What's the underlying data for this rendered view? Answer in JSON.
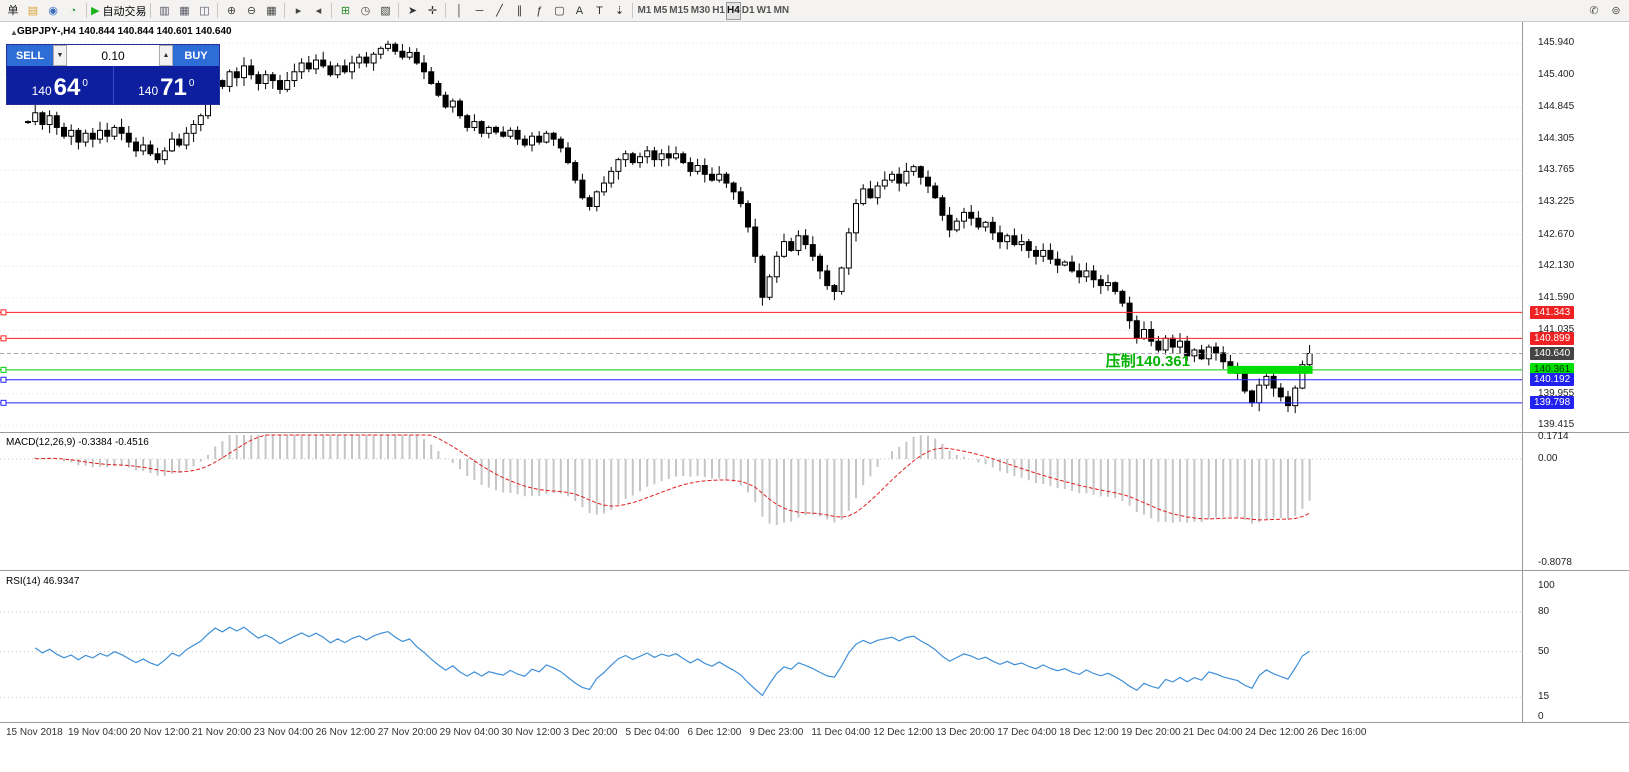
{
  "toolbar": {
    "left_groups": [
      [
        {
          "name": "new-order-button",
          "glyph": "单",
          "color": "#1a1a1a"
        },
        {
          "name": "charts-grid-icon",
          "glyph": "▤",
          "color": "#d8a030"
        },
        {
          "name": "profile-icon",
          "glyph": "◉",
          "color": "#3d6fc0"
        },
        {
          "name": "refresh-icon",
          "glyph": "◔",
          "color": "#2a9a4a"
        }
      ],
      [
        {
          "name": "auto-trading-button",
          "glyph": "▶",
          "color": "#1db51d",
          "label": "自动交易"
        }
      ],
      [
        {
          "name": "data-window-icon",
          "glyph": "▥",
          "color": "#556"
        },
        {
          "name": "market-watch-icon",
          "glyph": "▦",
          "color": "#556"
        },
        {
          "name": "navigator-icon",
          "glyph": "◫",
          "color": "#556"
        }
      ],
      [
        {
          "name": "zoom-in-icon",
          "glyph": "⊕",
          "color": "#444"
        },
        {
          "name": "zoom-out-icon",
          "glyph": "⊖",
          "color": "#444"
        },
        {
          "name": "tile-windows-icon",
          "glyph": "▦",
          "color": "#444"
        }
      ],
      [
        {
          "name": "auto-scroll-icon",
          "glyph": "▸",
          "color": "#444"
        },
        {
          "name": "chart-shift-icon",
          "glyph": "◂",
          "color": "#444"
        }
      ],
      [
        {
          "name": "indicators-icon",
          "glyph": "⊞",
          "color": "#2a8a2a"
        },
        {
          "name": "periods-icon",
          "glyph": "◷",
          "color": "#444"
        },
        {
          "name": "templates-icon",
          "glyph": "▧",
          "color": "#444"
        }
      ],
      [
        {
          "name": "cursor-icon",
          "glyph": "➤",
          "color": "#333"
        },
        {
          "name": "crosshair-icon",
          "glyph": "✛",
          "color": "#333"
        }
      ],
      [
        {
          "name": "vertical-line-icon",
          "glyph": "│",
          "color": "#333"
        },
        {
          "name": "horizontal-line-icon",
          "glyph": "─",
          "color": "#333"
        },
        {
          "name": "trendline-icon",
          "glyph": "╱",
          "color": "#333"
        },
        {
          "name": "channel-icon",
          "glyph": "∥",
          "color": "#333"
        },
        {
          "name": "fibonacci-icon",
          "glyph": "ƒ",
          "color": "#333"
        },
        {
          "name": "shapes-icon",
          "glyph": "▢",
          "color": "#333"
        },
        {
          "name": "text-icon",
          "glyph": "A",
          "color": "#333"
        },
        {
          "name": "label-icon",
          "glyph": "T",
          "color": "#333"
        },
        {
          "name": "arrows-icon",
          "glyph": "⇣",
          "color": "#333"
        }
      ]
    ],
    "timeframes": [
      {
        "label": "M1"
      },
      {
        "label": "M5"
      },
      {
        "label": "M15"
      },
      {
        "label": "M30"
      },
      {
        "label": "H1"
      },
      {
        "label": "H4",
        "active": true
      },
      {
        "label": "D1"
      },
      {
        "label": "W1"
      },
      {
        "label": "MN"
      }
    ],
    "right_icons": [
      {
        "name": "mobile-app-icon",
        "glyph": "✆",
        "color": "#555"
      },
      {
        "name": "community-icon",
        "glyph": "⊚",
        "color": "#555"
      }
    ]
  },
  "chart": {
    "collapse_glyph": "▲",
    "symbol_ohlc": "GBPJPY-,H4  140.844 140.844 140.601 140.640",
    "annotation": {
      "text": "压制140.361",
      "color": "#00b300"
    },
    "grid_labels": [
      "145.940",
      "145.400",
      "144.845",
      "144.305",
      "143.765",
      "143.225",
      "142.670",
      "142.130",
      "141.590",
      "141.035",
      "139.955",
      "139.415"
    ],
    "price_tags": [
      {
        "label": "141.343",
        "bg": "#ee2222",
        "fg": "#ffffff"
      },
      {
        "label": "140.899",
        "bg": "#ee2222",
        "fg": "#ffffff"
      },
      {
        "label": "140.640",
        "bg": "#444444",
        "fg": "#ffffff"
      },
      {
        "label": "140.361",
        "bg": "#00dd00",
        "fg": "#003300"
      },
      {
        "label": "140.192",
        "bg": "#2222ee",
        "fg": "#ffffff"
      },
      {
        "label": "139.798",
        "bg": "#2222ee",
        "fg": "#ffffff"
      }
    ],
    "hlines": [
      {
        "price": 141.343,
        "color": "#ff2020",
        "dash": ""
      },
      {
        "price": 140.899,
        "color": "#ff2020",
        "dash": ""
      },
      {
        "price": 140.361,
        "color": "#00cc00",
        "dash": ""
      },
      {
        "price": 140.192,
        "color": "#2020ff",
        "dash": ""
      },
      {
        "price": 139.798,
        "color": "#2020ff",
        "dash": ""
      },
      {
        "price": 140.64,
        "color": "#aaaaaa",
        "dash": "4 3"
      }
    ],
    "zone": {
      "price": 140.361,
      "start_index": 167,
      "end_index": 178,
      "color": "#00dd00",
      "half_height": 4
    }
  },
  "one_click": {
    "sell_label": "SELL",
    "buy_label": "BUY",
    "lot_value": "0.10",
    "dec_glyph": "▼",
    "inc_glyph": "▲",
    "sell_price": {
      "small": "140",
      "big": "64",
      "sup": "0"
    },
    "buy_price": {
      "small": "140",
      "big": "71",
      "sup": "0"
    }
  },
  "macd": {
    "label": "MACD(12,26,9) -0.3384 -0.4516",
    "fast": 12,
    "slow": 26,
    "smooth": 9,
    "hist_color": "#c6c6c6",
    "signal_color": "#e02020",
    "axis": [
      {
        "v": 0.1714,
        "label": "0.1714"
      },
      {
        "v": 0,
        "label": "0.00"
      },
      {
        "v": -0.8078,
        "label": "-0.8078"
      }
    ]
  },
  "rsi": {
    "label": "RSI(14) 46.9347",
    "period": 14,
    "color": "#3f8fd8",
    "levels": [
      80,
      50,
      15
    ],
    "axis": [
      {
        "v": 100,
        "label": "100"
      },
      {
        "v": 80,
        "label": "80"
      },
      {
        "v": 50,
        "label": "50"
      },
      {
        "v": 15,
        "label": "15"
      },
      {
        "v": 0,
        "label": "0"
      }
    ]
  },
  "time_labels": [
    "15 Nov 2018",
    "19 Nov 04:00",
    "20 Nov 12:00",
    "21 Nov 20:00",
    "23 Nov 04:00",
    "26 Nov 12:00",
    "27 Nov 20:00",
    "29 Nov 04:00",
    "30 Nov 12:00",
    "3 Dec 20:00",
    "5 Dec 04:00",
    "6 Dec 12:00",
    "9 Dec 23:00",
    "11 Dec 04:00",
    "12 Dec 12:00",
    "13 Dec 20:00",
    "17 Dec 04:00",
    "18 Dec 12:00",
    "19 Dec 20:00",
    "21 Dec 04:00",
    "24 Dec 12:00",
    "26 Dec 16:00"
  ],
  "chart_data": {
    "type": "candlestick",
    "symbol": "GBPJPY",
    "timeframe": "H4",
    "y_range": [
      139.3,
      146.3
    ],
    "closes": [
      144.6,
      144.75,
      144.55,
      144.7,
      144.5,
      144.35,
      144.45,
      144.25,
      144.4,
      144.3,
      144.45,
      144.35,
      144.5,
      144.4,
      144.25,
      144.1,
      144.2,
      144.05,
      143.95,
      144.1,
      144.3,
      144.2,
      144.4,
      144.55,
      144.7,
      145.0,
      145.3,
      145.2,
      145.45,
      145.35,
      145.55,
      145.4,
      145.25,
      145.4,
      145.3,
      145.15,
      145.3,
      145.45,
      145.6,
      145.5,
      145.65,
      145.55,
      145.4,
      145.55,
      145.45,
      145.6,
      145.7,
      145.6,
      145.75,
      145.85,
      145.92,
      145.8,
      145.7,
      145.78,
      145.6,
      145.45,
      145.25,
      145.05,
      144.85,
      144.95,
      144.7,
      144.5,
      144.6,
      144.4,
      144.5,
      144.42,
      144.35,
      144.45,
      144.3,
      144.2,
      144.35,
      144.25,
      144.4,
      144.3,
      144.15,
      143.9,
      143.6,
      143.3,
      143.15,
      143.4,
      143.55,
      143.75,
      143.95,
      144.05,
      143.9,
      144.0,
      144.1,
      143.95,
      144.05,
      143.98,
      144.05,
      143.9,
      143.75,
      143.85,
      143.7,
      143.6,
      143.7,
      143.55,
      143.4,
      143.2,
      142.8,
      142.3,
      141.6,
      141.95,
      142.3,
      142.55,
      142.4,
      142.65,
      142.5,
      142.3,
      142.05,
      141.8,
      141.7,
      142.1,
      142.7,
      143.2,
      143.45,
      143.3,
      143.5,
      143.6,
      143.7,
      143.55,
      143.75,
      143.83,
      143.65,
      143.5,
      143.3,
      143.0,
      142.75,
      142.9,
      143.05,
      142.95,
      142.8,
      142.88,
      142.7,
      142.55,
      142.65,
      142.5,
      142.55,
      142.4,
      142.3,
      142.4,
      142.25,
      142.15,
      142.2,
      142.05,
      141.95,
      142.05,
      141.9,
      141.8,
      141.85,
      141.7,
      141.5,
      141.2,
      140.9,
      141.05,
      140.85,
      140.7,
      140.9,
      140.75,
      140.85,
      140.6,
      140.7,
      140.55,
      140.75,
      140.65,
      140.5,
      140.4,
      140.3,
      140.0,
      139.8,
      140.1,
      140.25,
      140.05,
      139.9,
      139.75,
      140.05,
      140.45,
      140.64
    ]
  }
}
